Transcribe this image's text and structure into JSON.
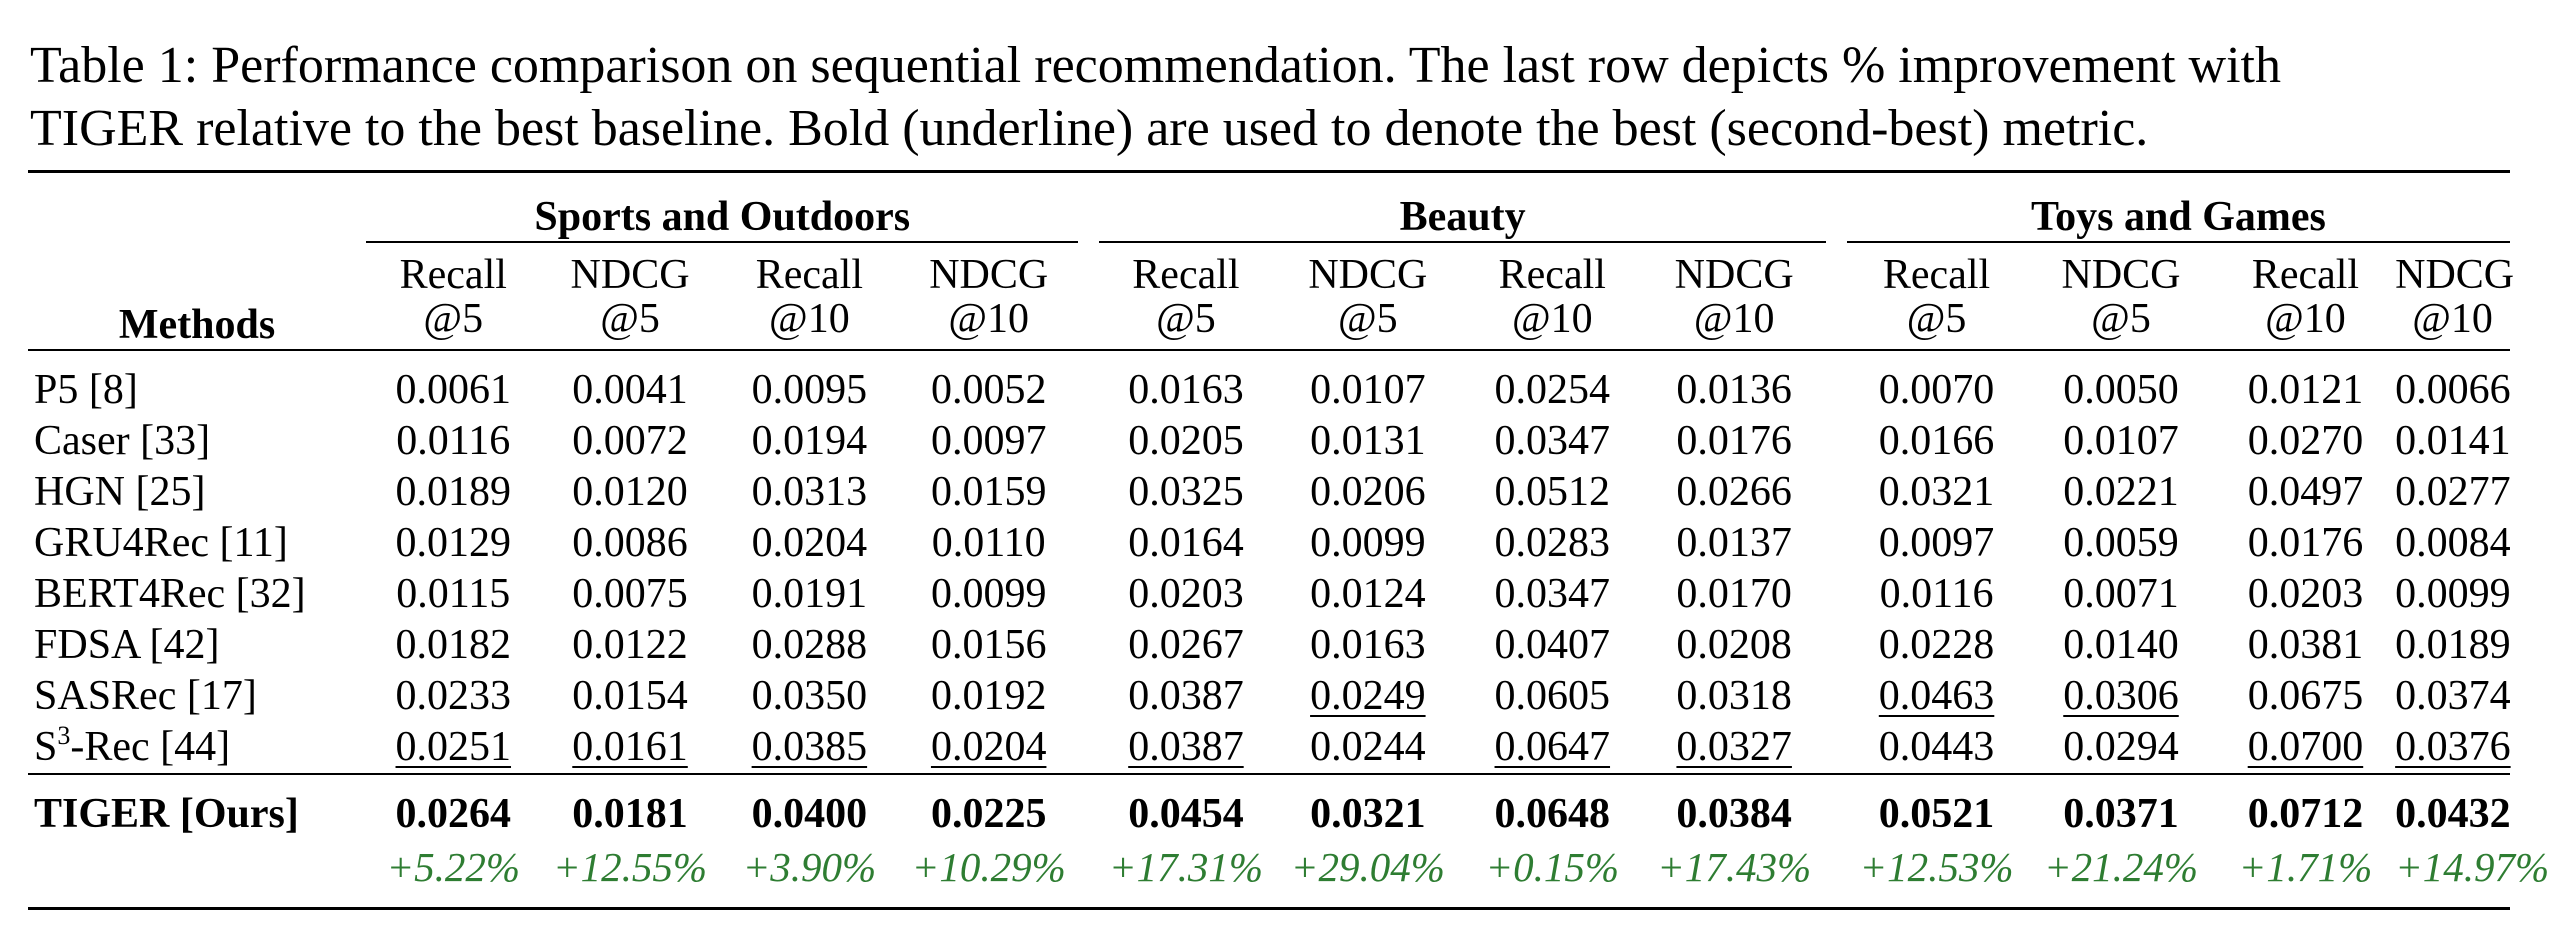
{
  "caption": {
    "line1": "Table 1: Performance comparison on sequential recommendation. The last row depicts % improvement with",
    "line2": "TIGER relative to the best baseline. Bold (underline) are used to denote the best (second-best) metric."
  },
  "table": {
    "methods_header": "Methods",
    "groups": [
      "Sports and Outdoors",
      "Beauty",
      "Toys and Games"
    ],
    "metrics": [
      {
        "line1": "Recall",
        "line2": "@5"
      },
      {
        "line1": "NDCG",
        "line2": "@5"
      },
      {
        "line1": "Recall",
        "line2": "@10"
      },
      {
        "line1": "NDCG",
        "line2": "@10"
      }
    ],
    "rows": [
      {
        "method": "P5 [8]",
        "values": [
          "0.0061",
          "0.0041",
          "0.0095",
          "0.0052",
          "0.0163",
          "0.0107",
          "0.0254",
          "0.0136",
          "0.0070",
          "0.0050",
          "0.0121",
          "0.0066"
        ]
      },
      {
        "method": "Caser [33]",
        "values": [
          "0.0116",
          "0.0072",
          "0.0194",
          "0.0097",
          "0.0205",
          "0.0131",
          "0.0347",
          "0.0176",
          "0.0166",
          "0.0107",
          "0.0270",
          "0.0141"
        ]
      },
      {
        "method": "HGN [25]",
        "values": [
          "0.0189",
          "0.0120",
          "0.0313",
          "0.0159",
          "0.0325",
          "0.0206",
          "0.0512",
          "0.0266",
          "0.0321",
          "0.0221",
          "0.0497",
          "0.0277"
        ]
      },
      {
        "method": "GRU4Rec [11]",
        "values": [
          "0.0129",
          "0.0086",
          "0.0204",
          "0.0110",
          "0.0164",
          "0.0099",
          "0.0283",
          "0.0137",
          "0.0097",
          "0.0059",
          "0.0176",
          "0.0084"
        ]
      },
      {
        "method": "BERT4Rec [32]",
        "values": [
          "0.0115",
          "0.0075",
          "0.0191",
          "0.0099",
          "0.0203",
          "0.0124",
          "0.0347",
          "0.0170",
          "0.0116",
          "0.0071",
          "0.0203",
          "0.0099"
        ]
      },
      {
        "method": "FDSA [42]",
        "values": [
          "0.0182",
          "0.0122",
          "0.0288",
          "0.0156",
          "0.0267",
          "0.0163",
          "0.0407",
          "0.0208",
          "0.0228",
          "0.0140",
          "0.0381",
          "0.0189"
        ]
      },
      {
        "method": "SASRec [17]",
        "values": [
          "0.0233",
          "0.0154",
          "0.0350",
          "0.0192",
          "0.0387",
          "0.0249",
          "0.0605",
          "0.0318",
          "0.0463",
          "0.0306",
          "0.0675",
          "0.0374"
        ],
        "underline": [
          false,
          false,
          false,
          false,
          false,
          true,
          false,
          false,
          true,
          true,
          false,
          false
        ]
      },
      {
        "method_base": "S",
        "method_sup": "3",
        "method_rest": "-Rec [44]",
        "values": [
          "0.0251",
          "0.0161",
          "0.0385",
          "0.0204",
          "0.0387",
          "0.0244",
          "0.0647",
          "0.0327",
          "0.0443",
          "0.0294",
          "0.0700",
          "0.0376"
        ],
        "underline": [
          true,
          true,
          true,
          true,
          true,
          false,
          true,
          true,
          false,
          false,
          true,
          true
        ]
      }
    ],
    "tiger": {
      "method": "TIGER [Ours]",
      "values": [
        "0.0264",
        "0.0181",
        "0.0400",
        "0.0225",
        "0.0454",
        "0.0321",
        "0.0648",
        "0.0384",
        "0.0521",
        "0.0371",
        "0.0712",
        "0.0432"
      ],
      "improvements": [
        "+5.22%",
        "+12.55%",
        "+3.90%",
        "+10.29%",
        "+17.31%",
        "+29.04%",
        "+0.15%",
        "+17.43%",
        "+12.53%",
        "+21.24%",
        "+1.71%",
        "+14.97%"
      ]
    },
    "colors": {
      "improvement": "#2e7d32"
    }
  }
}
